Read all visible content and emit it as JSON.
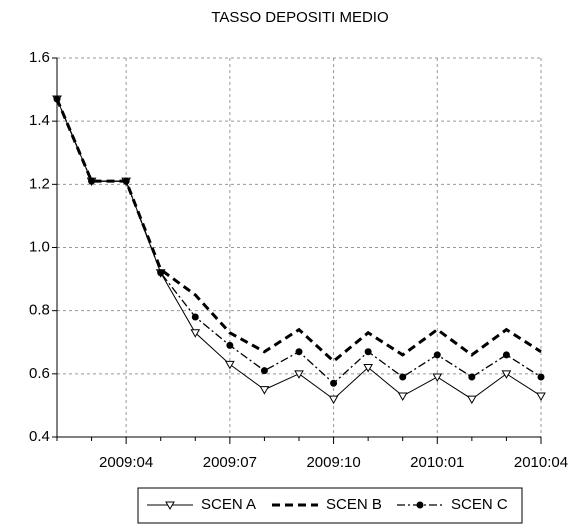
{
  "chart_data": {
    "type": "line",
    "title": "TASSO DEPOSITI MEDIO",
    "categories": [
      null,
      null,
      "2009:04",
      null,
      null,
      "2009:07",
      null,
      null,
      "2009:10",
      null,
      null,
      "2010:01",
      null,
      null,
      "2010:04"
    ],
    "series": [
      {
        "name": "SCEN A",
        "color": "#000000",
        "line": "solid",
        "marker": "triangle",
        "values": [
          1.47,
          1.21,
          1.21,
          0.92,
          0.73,
          0.63,
          0.55,
          0.6,
          0.52,
          0.62,
          0.53,
          0.59,
          0.52,
          0.6,
          0.53
        ]
      },
      {
        "name": "SCEN B",
        "color": "#000000",
        "line": "dashed",
        "values": [
          1.47,
          1.21,
          1.21,
          0.93,
          0.85,
          0.73,
          0.67,
          0.74,
          0.64,
          0.73,
          0.66,
          0.74,
          0.66,
          0.74,
          0.67
        ]
      },
      {
        "name": "SCEN C",
        "color": "#000000",
        "line": "dashdot",
        "marker": "circle",
        "values": [
          1.47,
          1.21,
          1.21,
          0.92,
          0.78,
          0.69,
          0.61,
          0.67,
          0.57,
          0.67,
          0.59,
          0.66,
          0.59,
          0.66,
          0.59
        ]
      }
    ],
    "ylim": [
      0.4,
      1.6
    ],
    "yticks": [
      0.4,
      0.6,
      0.8,
      {
        "value": 1.0,
        "label": "1.0"
      },
      1.2,
      1.4,
      1.6
    ],
    "grid": true,
    "legend": "bottom"
  }
}
